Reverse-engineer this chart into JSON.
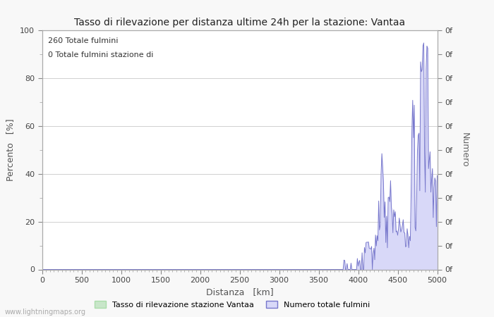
{
  "title": "Tasso di rilevazione per distanza ultime 24h per la stazione: Vantaa",
  "xlabel": "Distanza   [km]",
  "ylabel_left": "Percento   [%]",
  "ylabel_right": "Numero",
  "annotation_line1": "260 Totale fulmini",
  "annotation_line2": "0 Totale fulmini stazione di",
  "xlim": [
    0,
    5000
  ],
  "ylim_left": [
    0,
    100
  ],
  "ylim_right": [
    0,
    100
  ],
  "xticks": [
    0,
    500,
    1000,
    1500,
    2000,
    2500,
    3000,
    3500,
    4000,
    4500,
    5000
  ],
  "yticks_left": [
    0,
    20,
    40,
    60,
    80,
    100
  ],
  "yticks_right_labels": [
    "0f",
    "0f",
    "0f",
    "0f",
    "0f",
    "0f",
    "0f",
    "0f",
    "0f",
    "0f",
    "0f"
  ],
  "right_tick_values": [
    0,
    10,
    20,
    30,
    40,
    50,
    60,
    70,
    80,
    90,
    100
  ],
  "legend_green_label": "Tasso di rilevazione stazione Vantaa",
  "legend_blue_label": "Numero totale fulmini",
  "watermark": "www.lightningmaps.org",
  "bg_color": "#f8f8f8",
  "plot_bg_color": "#ffffff",
  "grid_color": "#d0d0d0",
  "line_color": "#7777cc",
  "fill_color": "#d8d8f8",
  "green_fill": "#c8e6c9"
}
